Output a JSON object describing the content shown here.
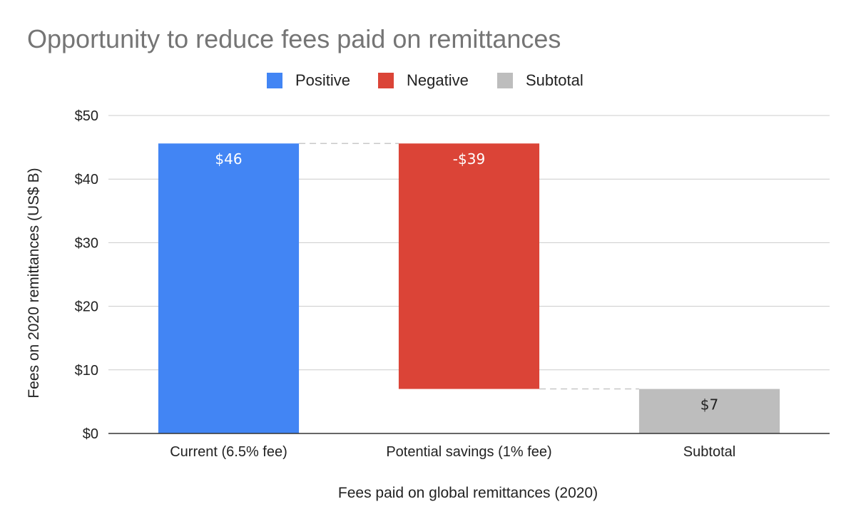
{
  "chart_data": {
    "type": "waterfall",
    "title": "Opportunity to reduce fees paid on remittances",
    "xlabel": "Fees paid on global remittances (2020)",
    "ylabel": "Fees on 2020 remittances (US$ B)",
    "ylim": [
      0,
      50
    ],
    "yticks": [
      {
        "value": 0,
        "label": "$0"
      },
      {
        "value": 10,
        "label": "$10"
      },
      {
        "value": 20,
        "label": "$20"
      },
      {
        "value": 30,
        "label": "$30"
      },
      {
        "value": 40,
        "label": "$40"
      },
      {
        "value": 50,
        "label": "$50"
      }
    ],
    "grid": true,
    "legend_position": "top",
    "legend": [
      {
        "name": "Positive",
        "color": "#4285f4"
      },
      {
        "name": "Negative",
        "color": "#db4437"
      },
      {
        "name": "Subtotal",
        "color": "#bdbdbd"
      }
    ],
    "categories": [
      "Current (6.5% fee)",
      "Potential savings (1% fee)",
      "Subtotal"
    ],
    "bars": [
      {
        "category": "Current (6.5% fee)",
        "kind": "Positive",
        "start": 0,
        "end": 45.6,
        "label": "$46",
        "color": "#4285f4",
        "label_color": "#ffffff"
      },
      {
        "category": "Potential savings (1% fee)",
        "kind": "Negative",
        "start": 45.6,
        "end": 7.0,
        "label": "-$39",
        "color": "#db4437",
        "label_color": "#ffffff"
      },
      {
        "category": "Subtotal",
        "kind": "Subtotal",
        "start": 0,
        "end": 7.0,
        "label": "$7",
        "color": "#bdbdbd",
        "label_color": "#222222"
      }
    ]
  }
}
